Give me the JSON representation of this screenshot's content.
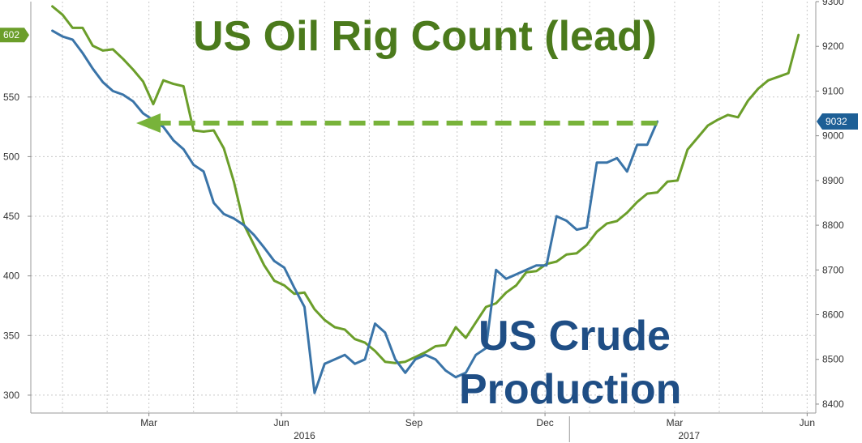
{
  "chart_data": {
    "type": "line",
    "titles": {
      "rig_count": "US Oil Rig Count (lead)",
      "production_line1": "US Crude",
      "production_line2": "Production"
    },
    "colors": {
      "rig_count": "#6b9e2a",
      "production": "#3a74a8",
      "rig_title": "#4b7a1c",
      "production_title": "#1f4e85",
      "arrow": "#78b33a",
      "grid": "#c8c8c8"
    },
    "x_axis": {
      "months": [
        "Mar",
        "Jun",
        "Sep",
        "Dec",
        "Mar",
        "Jun"
      ],
      "years": [
        "2016",
        "2017"
      ]
    },
    "left_axis": {
      "series": "rig_count",
      "ticks": [
        "300",
        "350",
        "400",
        "450",
        "500",
        "550"
      ],
      "ylim": [
        285,
        630
      ],
      "last_value_tag": "602"
    },
    "right_axis": {
      "series": "production",
      "ticks": [
        "8400",
        "8500",
        "8600",
        "8700",
        "8800",
        "8900",
        "9000",
        "9100",
        "9200",
        "9300"
      ],
      "ylim": [
        8380,
        9300
      ],
      "last_value_tag": "9032"
    },
    "grid": true,
    "series": [
      {
        "name": "rig_count",
        "axis": "left",
        "x": [
          "2016-01-08",
          "2016-01-15",
          "2016-01-22",
          "2016-01-29",
          "2016-02-05",
          "2016-02-12",
          "2016-02-19",
          "2016-02-26",
          "2016-03-04",
          "2016-03-11",
          "2016-03-18",
          "2016-03-25",
          "2016-04-01",
          "2016-04-08",
          "2016-04-15",
          "2016-04-22",
          "2016-04-29",
          "2016-05-06",
          "2016-05-13",
          "2016-05-20",
          "2016-05-27",
          "2016-06-03",
          "2016-06-10",
          "2016-06-17",
          "2016-06-24",
          "2016-07-01",
          "2016-07-08",
          "2016-07-15",
          "2016-07-22",
          "2016-07-29",
          "2016-08-05",
          "2016-08-12",
          "2016-08-19",
          "2016-08-26",
          "2016-09-02",
          "2016-09-09",
          "2016-09-16",
          "2016-09-23",
          "2016-09-30",
          "2016-10-07",
          "2016-10-14",
          "2016-10-21",
          "2016-10-28",
          "2016-11-04",
          "2016-11-11",
          "2016-11-18",
          "2016-11-25",
          "2016-12-02",
          "2016-12-09",
          "2016-12-16",
          "2016-12-23",
          "2016-12-30",
          "2017-01-06",
          "2017-01-13",
          "2017-01-20",
          "2017-01-27",
          "2017-02-03",
          "2017-02-10",
          "2017-02-17",
          "2017-02-24",
          "2017-03-03",
          "2017-03-10",
          "2017-03-17",
          "2017-03-24",
          "2017-03-31",
          "2017-04-07",
          "2017-04-14",
          "2017-04-21",
          "2017-04-28",
          "2017-05-05",
          "2017-05-12",
          "2017-05-19",
          "2017-05-26",
          "2017-06-02",
          "2017-06-09"
        ],
        "values": [
          626,
          619,
          608,
          608,
          593,
          589,
          590,
          582,
          573,
          563,
          544,
          564,
          561,
          559,
          522,
          521,
          522,
          507,
          479,
          443,
          426,
          409,
          396,
          392,
          385,
          386,
          372,
          363,
          357,
          355,
          347,
          344,
          337,
          328,
          327,
          328,
          332,
          336,
          341,
          342,
          357,
          348,
          361,
          374,
          377,
          386,
          392,
          403,
          404,
          410,
          412,
          418,
          419,
          426,
          437,
          444,
          446,
          453,
          462,
          469,
          470,
          479,
          480,
          506,
          516,
          526,
          531,
          535,
          533,
          547,
          557,
          564,
          567,
          570,
          602
        ]
      },
      {
        "name": "production",
        "axis": "right",
        "x": [
          "2016-01-08",
          "2016-01-15",
          "2016-01-22",
          "2016-01-29",
          "2016-02-05",
          "2016-02-12",
          "2016-02-19",
          "2016-02-26",
          "2016-03-04",
          "2016-03-11",
          "2016-03-18",
          "2016-03-25",
          "2016-04-01",
          "2016-04-08",
          "2016-04-15",
          "2016-04-22",
          "2016-04-29",
          "2016-05-06",
          "2016-05-13",
          "2016-05-20",
          "2016-05-27",
          "2016-06-03",
          "2016-06-10",
          "2016-06-17",
          "2016-06-24",
          "2016-07-01",
          "2016-07-08",
          "2016-07-15",
          "2016-07-22",
          "2016-07-29",
          "2016-08-05",
          "2016-08-12",
          "2016-08-19",
          "2016-08-26",
          "2016-09-02",
          "2016-09-09",
          "2016-09-16",
          "2016-09-23",
          "2016-09-30",
          "2016-10-07",
          "2016-10-14",
          "2016-10-21",
          "2016-10-28",
          "2016-11-04",
          "2016-11-11",
          "2016-11-18",
          "2016-11-25",
          "2016-12-02",
          "2016-12-09",
          "2016-12-16",
          "2016-12-23",
          "2016-12-30",
          "2017-01-06",
          "2017-01-13",
          "2017-01-20",
          "2017-01-27",
          "2017-02-03",
          "2017-02-10",
          "2017-02-17",
          "2017-02-24",
          "2017-03-03"
        ],
        "values": [
          9235,
          9222,
          9215,
          9185,
          9150,
          9120,
          9100,
          9092,
          9077,
          9050,
          9035,
          9020,
          8990,
          8970,
          8935,
          8920,
          8850,
          8825,
          8815,
          8800,
          8778,
          8750,
          8720,
          8705,
          8660,
          8617,
          8425,
          8490,
          8500,
          8510,
          8490,
          8500,
          8580,
          8560,
          8500,
          8470,
          8500,
          8510,
          8500,
          8475,
          8460,
          8470,
          8510,
          8525,
          8700,
          8680,
          8690,
          8700,
          8710,
          8710,
          8820,
          8810,
          8790,
          8795,
          8940,
          8940,
          8950,
          8920,
          8980,
          8980,
          9032
        ]
      }
    ]
  }
}
